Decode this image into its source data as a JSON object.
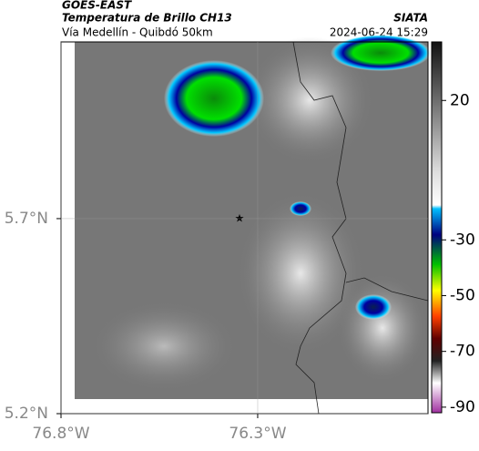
{
  "header": {
    "source": "GOES-EAST",
    "product": "Temperatura de Brillo CH13",
    "agency": "SIATA",
    "route": "Vía Medellín - Quibdó 50km",
    "timestamp": "2024-06-24 15:29"
  },
  "map": {
    "xlim": [
      -76.8,
      -75.867
    ],
    "ylim": [
      5.2,
      6.153
    ],
    "xticks": [
      {
        "value": -76.8,
        "label": "76.8°W"
      },
      {
        "value": -76.3,
        "label": "76.3°W"
      }
    ],
    "yticks": [
      {
        "value": 5.2,
        "label": "5.2°N"
      },
      {
        "value": 5.7,
        "label": "5.7°N"
      }
    ]
  },
  "colorbar": {
    "lim": [
      -92,
      41
    ],
    "ticks": [
      20,
      -30,
      -50,
      -70,
      -90
    ]
  }
}
